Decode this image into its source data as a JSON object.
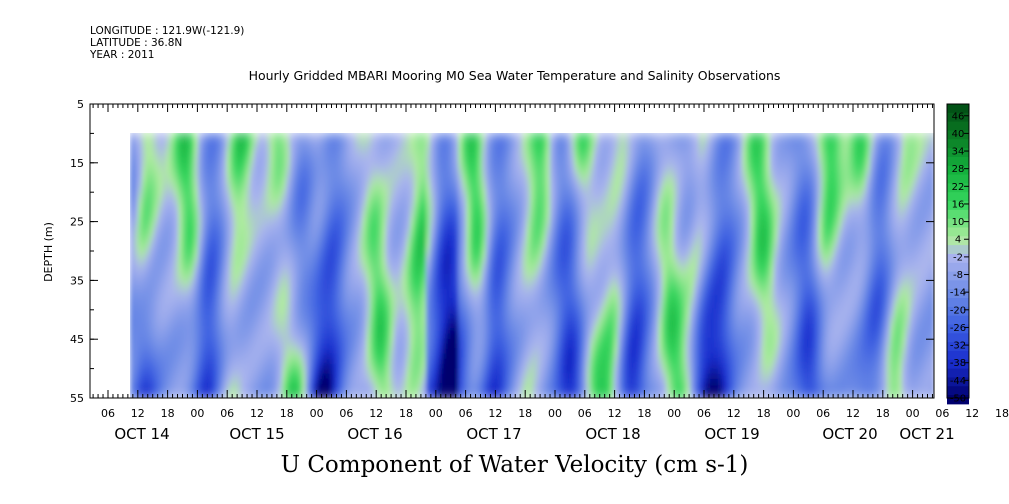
{
  "meta": {
    "longitude": "LONGITUDE : 121.9W(-121.9)",
    "latitude": "LATITUDE : 36.8N",
    "year": "YEAR : 2011"
  },
  "chart_data": {
    "type": "heatmap",
    "title": "Hourly Gridded MBARI Mooring M0 Sea Water Temperature and Salinity Observations",
    "xlabel": "U Component of Water Velocity (cm s-1)",
    "ylabel": "DEPTH (m)",
    "y_ticks": [
      5,
      15,
      25,
      35,
      45,
      55
    ],
    "ylim": [
      5,
      55
    ],
    "y_inverted": true,
    "data_depth_range": [
      10,
      55
    ],
    "hour_ticks": [
      "06",
      "12",
      "18",
      "00",
      "06",
      "12",
      "18",
      "00",
      "06",
      "12",
      "18",
      "00",
      "06",
      "12",
      "18",
      "00",
      "06",
      "12",
      "18",
      "00",
      "06",
      "12",
      "18",
      "00",
      "06",
      "12",
      "18",
      "00",
      "06",
      "12",
      "18",
      "00"
    ],
    "day_labels": [
      "OCT 14",
      "OCT 15",
      "OCT 16",
      "OCT 17",
      "OCT 18",
      "OCT 19",
      "OCT 20",
      "OCT 21"
    ],
    "colorbar_ticks": [
      "46",
      "40",
      "34",
      "28",
      "22",
      "16",
      "10",
      "4",
      "-2",
      "-8",
      "-14",
      "-20",
      "-26",
      "-32",
      "-38",
      "-44",
      "-50"
    ],
    "colorbar_range": [
      -50,
      50
    ]
  }
}
